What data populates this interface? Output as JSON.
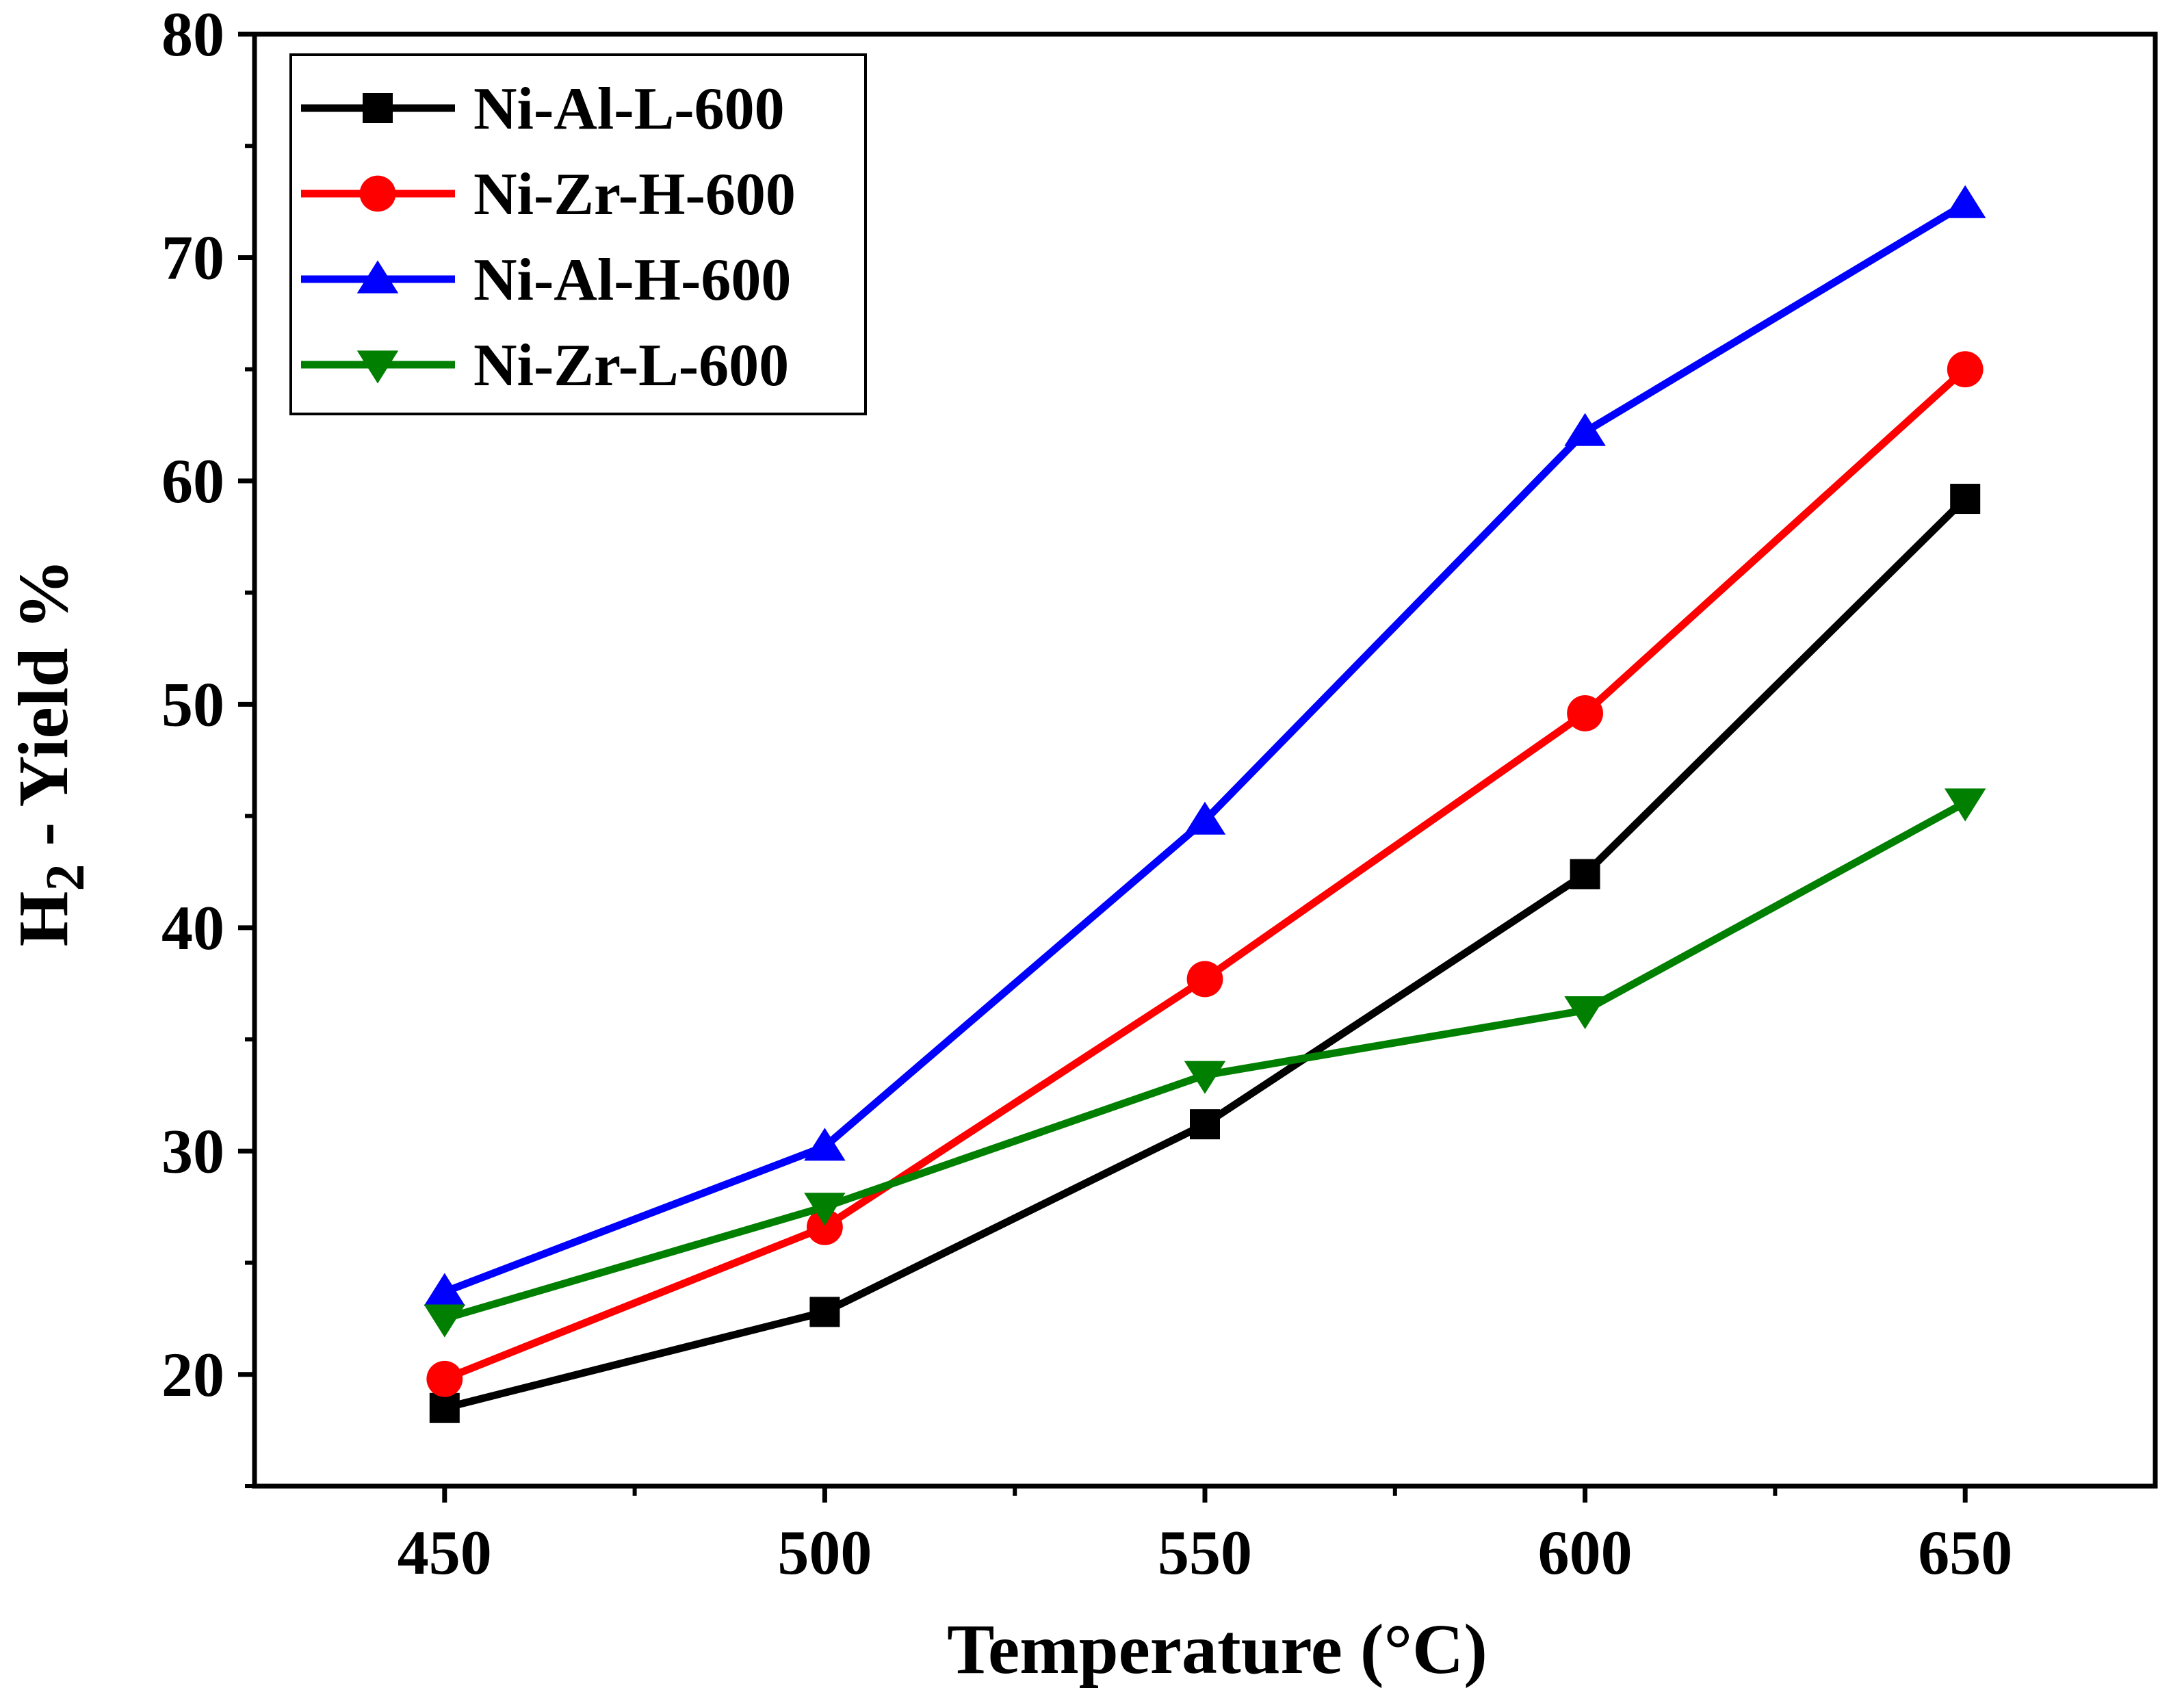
{
  "chart_data": {
    "type": "line",
    "title": "",
    "xlabel": "Temperature (°C)",
    "ylabel_main": "H",
    "ylabel_sub": "2",
    "ylabel_rest": " - Yield %",
    "xlim": [
      425,
      675
    ],
    "ylim": [
      15,
      80
    ],
    "x": [
      450,
      500,
      550,
      600,
      650
    ],
    "xticks": [
      450,
      500,
      550,
      600,
      650
    ],
    "xtick_labels": [
      "450",
      "500",
      "550",
      "600",
      "650"
    ],
    "yticks": [
      20,
      30,
      40,
      50,
      60,
      70,
      80
    ],
    "ytick_labels": [
      "20",
      "30",
      "40",
      "50",
      "60",
      "70",
      "80"
    ],
    "grid": false,
    "legend_position": "top-left",
    "series": [
      {
        "name": "Ni-Al-L-600",
        "color": "#000000",
        "marker": "square",
        "values": [
          18.5,
          22.8,
          31.2,
          42.4,
          59.2
        ]
      },
      {
        "name": "Ni-Zr-H-600",
        "color": "#ff0000",
        "marker": "circle",
        "values": [
          19.8,
          26.6,
          37.7,
          49.6,
          65.0
        ]
      },
      {
        "name": "Ni-Al-H-600",
        "color": "#0000ff",
        "marker": "triangle-up",
        "values": [
          23.7,
          30.2,
          44.8,
          62.2,
          72.4
        ]
      },
      {
        "name": "Ni-Zr-L-600",
        "color": "#007f00",
        "marker": "triangle-down",
        "values": [
          22.5,
          27.5,
          33.4,
          36.3,
          45.6
        ]
      }
    ]
  }
}
